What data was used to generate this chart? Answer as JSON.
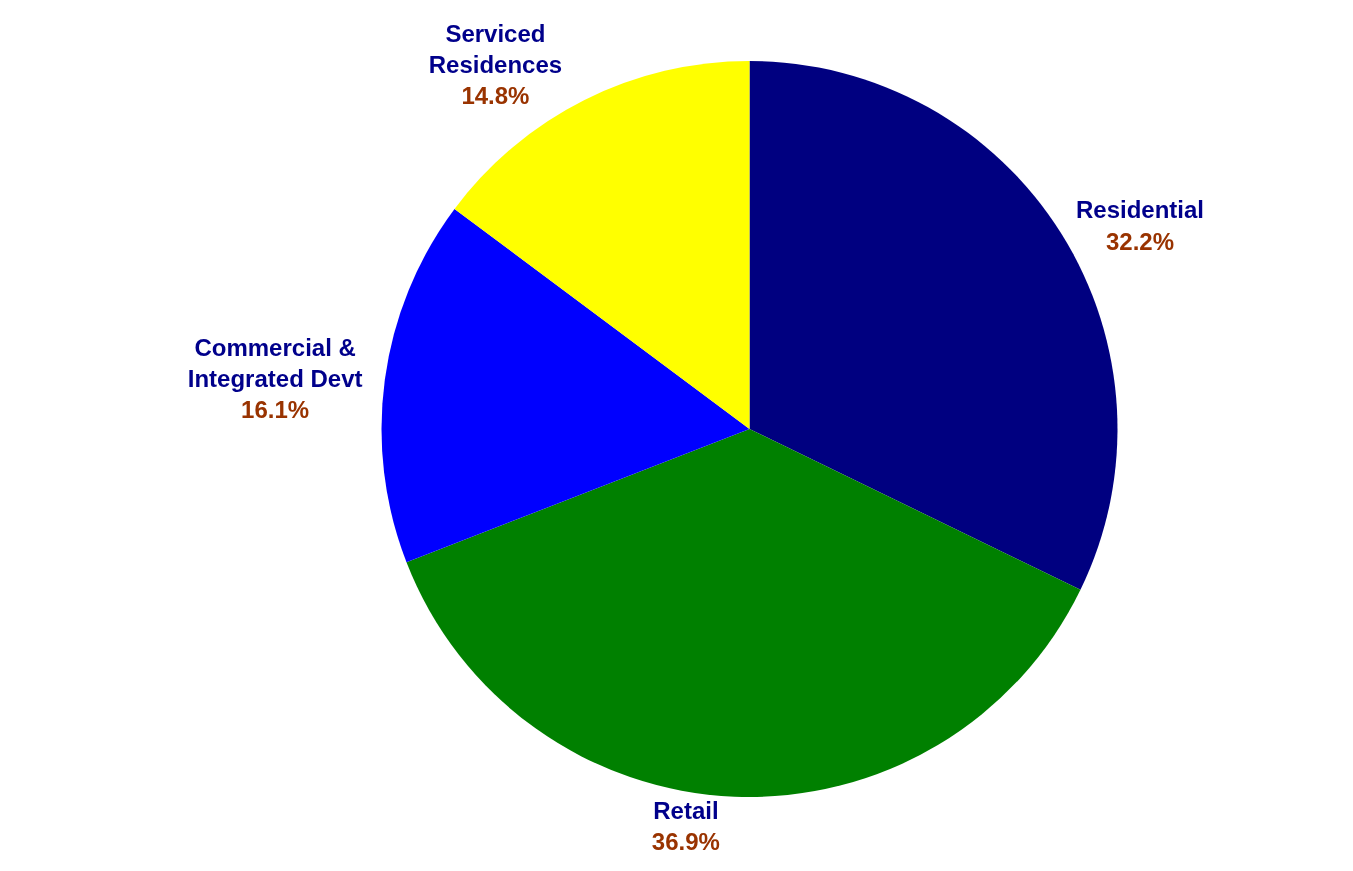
{
  "chart_data": {
    "type": "pie",
    "categories": [
      "Residential",
      "Retail",
      "Commercial & Integrated Devt",
      "Serviced Residences"
    ],
    "values": [
      32.2,
      36.9,
      16.1,
      14.8
    ],
    "value_labels": [
      "32.2%",
      "36.9%",
      "16.1%",
      "14.8%"
    ],
    "colors": [
      "#000080",
      "#008000",
      "#0000ff",
      "#ffff00"
    ]
  }
}
